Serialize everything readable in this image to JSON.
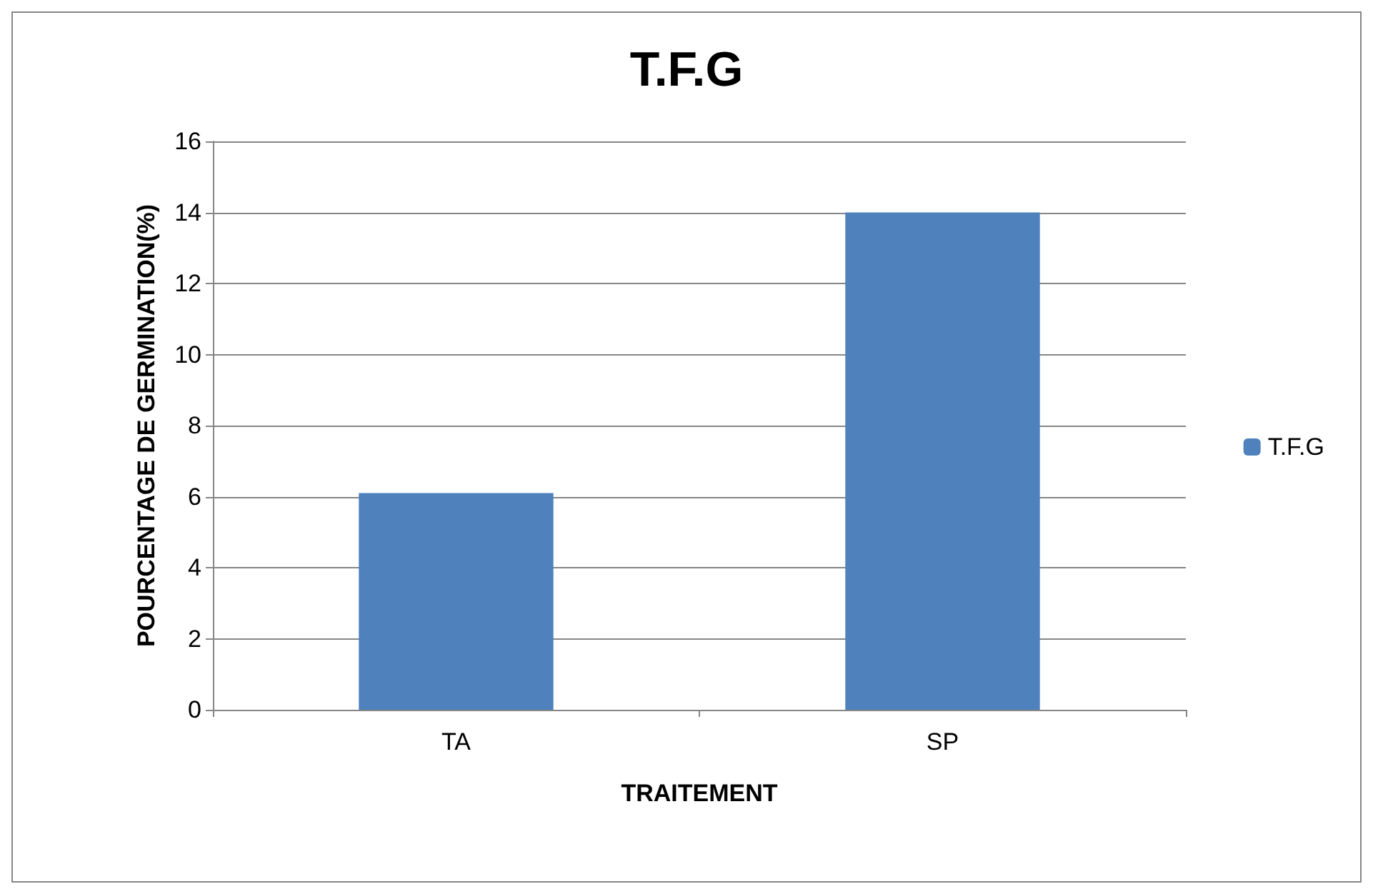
{
  "chart_data": {
    "type": "bar",
    "title": "T.F.G",
    "xlabel": "TRAITEMENT",
    "ylabel": "POURCENTAGE DE GERMINATION(%)",
    "categories": [
      "TA",
      "SP"
    ],
    "series": [
      {
        "name": "T.F.G",
        "color": "#4f81bd",
        "values": [
          6.1,
          14
        ]
      }
    ],
    "ylim": [
      0,
      16
    ],
    "yticks": [
      0,
      2,
      4,
      6,
      8,
      10,
      12,
      14,
      16
    ],
    "grid": "y",
    "legend": "right"
  }
}
